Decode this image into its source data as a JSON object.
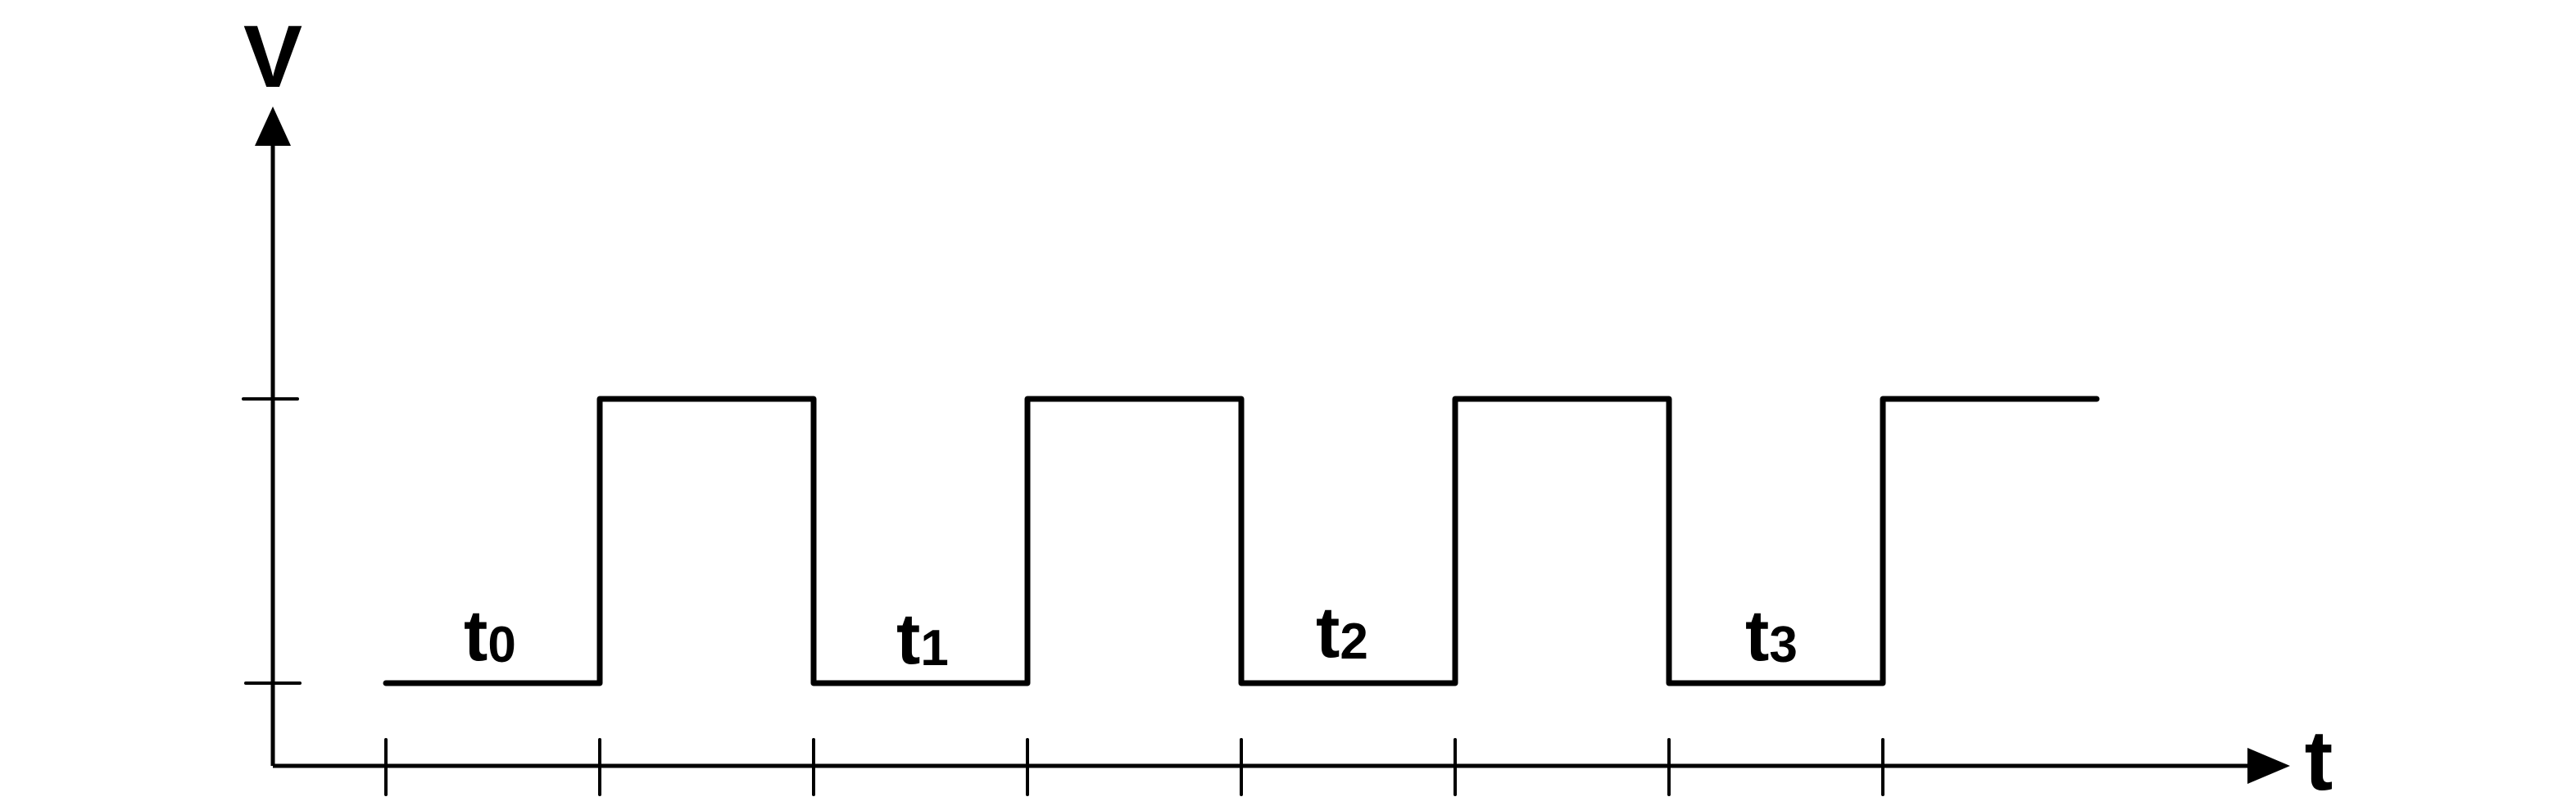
{
  "axes": {
    "y_label": "V",
    "x_label": "t"
  },
  "colors": {
    "line": "#000000",
    "background": "#ffffff"
  },
  "waveform": {
    "type": "square-wave",
    "levels": [
      "low",
      "high"
    ],
    "start_level": "low",
    "segments": [
      "low",
      "high",
      "low",
      "high",
      "low",
      "high",
      "low",
      "high"
    ]
  },
  "intervals": [
    {
      "base": "t",
      "sub": "0"
    },
    {
      "base": "t",
      "sub": "1"
    },
    {
      "base": "t",
      "sub": "2"
    },
    {
      "base": "t",
      "sub": "3"
    }
  ]
}
